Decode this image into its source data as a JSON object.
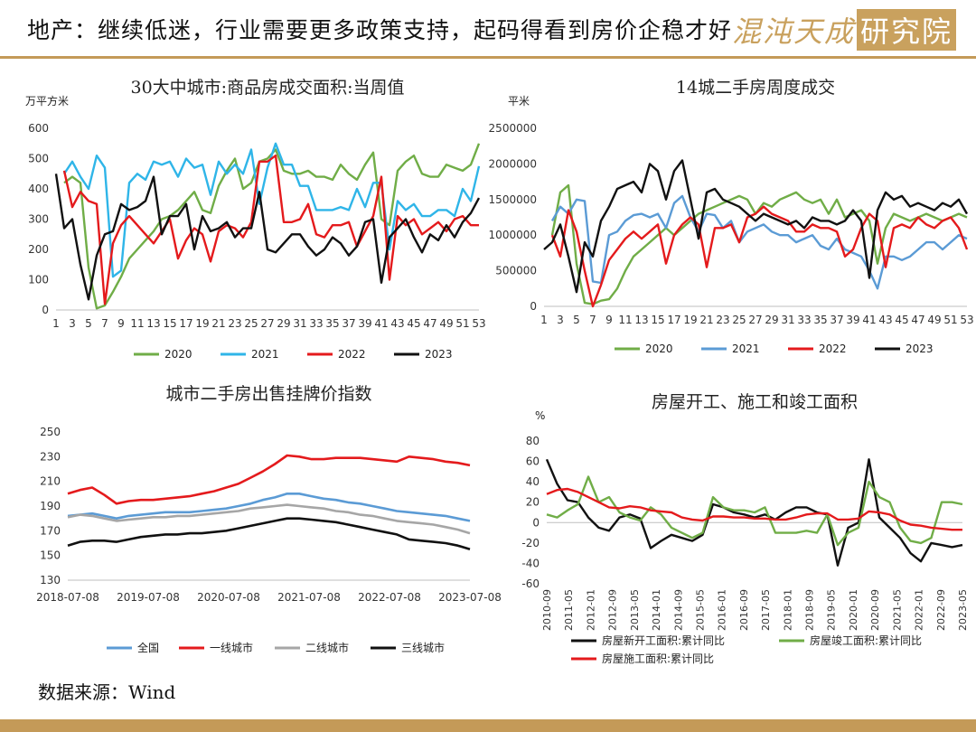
{
  "header": {
    "title": "地产：继续低迷，行业需要更多政策支持，起码得看到房价企稳才好",
    "brand": "混沌天成",
    "brand_box": "研究院"
  },
  "source": "数据来源：Wind",
  "colors": {
    "green": "#70ad47",
    "blue": "#2fb5e8",
    "red": "#e41a1c",
    "black": "#111111",
    "steel": "#5b9bd5",
    "gray": "#a6a6a6",
    "gold": "#c49a58"
  },
  "chart_data": [
    {
      "id": "c1",
      "type": "line",
      "title": "30大中城市:商品房成交面积:当周值",
      "unit": "万平方米",
      "xticks": [
        "1",
        "3",
        "5",
        "7",
        "9",
        "11",
        "13",
        "15",
        "17",
        "19",
        "21",
        "23",
        "25",
        "27",
        "29",
        "31",
        "33",
        "35",
        "37",
        "39",
        "41",
        "43",
        "45",
        "47",
        "49",
        "51",
        "53"
      ],
      "xlim": [
        1,
        53
      ],
      "ylim": [
        0,
        600
      ],
      "yticks": [
        0,
        100,
        200,
        300,
        400,
        500,
        600
      ],
      "grid": false,
      "legend": "bottom",
      "x": [
        1,
        2,
        3,
        4,
        5,
        6,
        7,
        8,
        9,
        10,
        11,
        12,
        13,
        14,
        15,
        16,
        17,
        18,
        19,
        20,
        21,
        22,
        23,
        24,
        25,
        26,
        27,
        28,
        29,
        30,
        31,
        32,
        33,
        34,
        35,
        36,
        37,
        38,
        39,
        40,
        41,
        42,
        43,
        44,
        45,
        46,
        47,
        48,
        49,
        50,
        51,
        52,
        53
      ],
      "series": [
        {
          "name": "2020",
          "color": "#70ad47",
          "values": [
            null,
            420,
            440,
            420,
            140,
            5,
            15,
            60,
            110,
            170,
            200,
            230,
            260,
            300,
            310,
            330,
            360,
            390,
            330,
            320,
            410,
            460,
            500,
            400,
            420,
            490,
            500,
            530,
            460,
            450,
            450,
            460,
            440,
            440,
            430,
            480,
            450,
            430,
            480,
            520,
            300,
            280,
            460,
            490,
            510,
            450,
            440,
            440,
            480,
            470,
            460,
            480,
            550
          ]
        },
        {
          "name": "2021",
          "color": "#2fb5e8",
          "values": [
            null,
            450,
            490,
            440,
            400,
            510,
            470,
            110,
            130,
            420,
            450,
            430,
            490,
            480,
            490,
            440,
            500,
            470,
            480,
            380,
            490,
            450,
            480,
            450,
            530,
            350,
            470,
            550,
            480,
            480,
            410,
            410,
            330,
            330,
            330,
            340,
            330,
            400,
            340,
            420,
            420,
            200,
            360,
            330,
            350,
            310,
            310,
            330,
            330,
            310,
            400,
            360,
            475
          ]
        },
        {
          "name": "2022",
          "color": "#e41a1c",
          "values": [
            null,
            460,
            340,
            390,
            360,
            350,
            20,
            220,
            280,
            310,
            280,
            250,
            220,
            260,
            300,
            170,
            230,
            270,
            250,
            160,
            260,
            280,
            270,
            240,
            290,
            490,
            490,
            510,
            290,
            290,
            300,
            350,
            250,
            240,
            280,
            280,
            290,
            210,
            260,
            310,
            440,
            100,
            310,
            280,
            300,
            250,
            270,
            290,
            260,
            300,
            310,
            280,
            280
          ]
        },
        {
          "name": "2023",
          "color": "#111111",
          "values": [
            450,
            270,
            300,
            150,
            35,
            180,
            250,
            260,
            350,
            330,
            340,
            360,
            440,
            250,
            310,
            310,
            350,
            200,
            310,
            260,
            270,
            290,
            240,
            270,
            270,
            390,
            200,
            190,
            220,
            250,
            250,
            210,
            180,
            200,
            240,
            220,
            180,
            210,
            290,
            300,
            90,
            240,
            270,
            300,
            240,
            190,
            250,
            230,
            280,
            240,
            290,
            320,
            370
          ]
        }
      ]
    },
    {
      "id": "c2",
      "type": "line",
      "title": "14城二手房周度成交",
      "unit": "平米",
      "xticks": [
        "1",
        "3",
        "5",
        "7",
        "9",
        "11",
        "13",
        "15",
        "17",
        "19",
        "21",
        "23",
        "25",
        "27",
        "29",
        "31",
        "33",
        "35",
        "37",
        "39",
        "41",
        "43",
        "45",
        "47",
        "49",
        "51",
        "53"
      ],
      "xlim": [
        1,
        53
      ],
      "ylim": [
        0,
        2500000
      ],
      "yticks": [
        0,
        500000,
        1000000,
        1500000,
        2000000,
        2500000
      ],
      "grid": false,
      "legend": "bottom",
      "x": [
        1,
        2,
        3,
        4,
        5,
        6,
        7,
        8,
        9,
        10,
        11,
        12,
        13,
        14,
        15,
        16,
        17,
        18,
        19,
        20,
        21,
        22,
        23,
        24,
        25,
        26,
        27,
        28,
        29,
        30,
        31,
        32,
        33,
        34,
        35,
        36,
        37,
        38,
        39,
        40,
        41,
        42,
        43,
        44,
        45,
        46,
        47,
        48,
        49,
        50,
        51,
        52,
        53
      ],
      "series": [
        {
          "name": "2020",
          "color": "#70ad47",
          "values": [
            null,
            1000000,
            1600000,
            1700000,
            600000,
            50000,
            30000,
            80000,
            100000,
            250000,
            500000,
            700000,
            800000,
            900000,
            1000000,
            1100000,
            1000000,
            1100000,
            1200000,
            1300000,
            1350000,
            1400000,
            1450000,
            1500000,
            1550000,
            1500000,
            1300000,
            1450000,
            1400000,
            1500000,
            1550000,
            1600000,
            1500000,
            1450000,
            1500000,
            1300000,
            1500000,
            1250000,
            1300000,
            1350000,
            1200000,
            600000,
            1100000,
            1300000,
            1250000,
            1200000,
            1250000,
            1300000,
            1250000,
            1200000,
            1250000,
            1300000,
            1250000
          ]
        },
        {
          "name": "2021",
          "color": "#5b9bd5",
          "values": [
            null,
            1200000,
            1400000,
            1300000,
            1500000,
            1480000,
            350000,
            330000,
            1000000,
            1050000,
            1200000,
            1280000,
            1300000,
            1250000,
            1300000,
            1100000,
            1450000,
            1550000,
            1250000,
            1050000,
            1300000,
            1280000,
            1100000,
            1200000,
            900000,
            1050000,
            1100000,
            1150000,
            1050000,
            1000000,
            1000000,
            900000,
            950000,
            1000000,
            850000,
            800000,
            950000,
            800000,
            750000,
            700000,
            500000,
            250000,
            700000,
            700000,
            650000,
            700000,
            800000,
            900000,
            900000,
            800000,
            900000,
            1000000,
            950000
          ]
        },
        {
          "name": "2022",
          "color": "#e41a1c",
          "values": [
            null,
            1000000,
            700000,
            1350000,
            1050000,
            500000,
            0,
            300000,
            650000,
            800000,
            950000,
            1050000,
            950000,
            1050000,
            1150000,
            600000,
            1000000,
            1150000,
            1250000,
            1150000,
            550000,
            1100000,
            1100000,
            1150000,
            900000,
            1250000,
            1300000,
            1400000,
            1300000,
            1250000,
            1200000,
            1050000,
            1050000,
            1150000,
            1100000,
            1100000,
            1050000,
            700000,
            800000,
            1100000,
            1300000,
            1200000,
            550000,
            1100000,
            1150000,
            1100000,
            1250000,
            1150000,
            1100000,
            1200000,
            1250000,
            1100000,
            800000
          ]
        },
        {
          "name": "2023",
          "color": "#111111",
          "values": [
            800000,
            900000,
            1150000,
            700000,
            200000,
            900000,
            700000,
            1200000,
            1400000,
            1650000,
            1700000,
            1750000,
            1600000,
            2000000,
            1900000,
            1500000,
            1900000,
            2050000,
            1500000,
            950000,
            1600000,
            1650000,
            1500000,
            1450000,
            1400000,
            1300000,
            1200000,
            1300000,
            1250000,
            1200000,
            1150000,
            1200000,
            1100000,
            1250000,
            1200000,
            1200000,
            1150000,
            1200000,
            1350000,
            1200000,
            400000,
            1350000,
            1600000,
            1500000,
            1550000,
            1400000,
            1450000,
            1400000,
            1350000,
            1450000,
            1400000,
            1500000,
            1300000
          ]
        }
      ]
    },
    {
      "id": "c3",
      "type": "line",
      "title": "城市二手房出售挂牌价指数",
      "xticks": [
        "2018-07-08",
        "2019-07-08",
        "2020-07-08",
        "2021-07-08",
        "2022-07-08",
        "2023-07-08"
      ],
      "ylim": [
        130,
        250
      ],
      "yticks": [
        130,
        150,
        170,
        190,
        210,
        230,
        250
      ],
      "grid": false,
      "legend": "bottom",
      "x": [
        "2018-07",
        "2018-09",
        "2018-11",
        "2019-01",
        "2019-03",
        "2019-05",
        "2019-07",
        "2019-09",
        "2019-11",
        "2020-01",
        "2020-03",
        "2020-05",
        "2020-07",
        "2020-09",
        "2020-11",
        "2021-01",
        "2021-03",
        "2021-05",
        "2021-07",
        "2021-09",
        "2021-11",
        "2022-01",
        "2022-03",
        "2022-05",
        "2022-07",
        "2022-09",
        "2022-11",
        "2023-01",
        "2023-03",
        "2023-05",
        "2023-07",
        "2023-09",
        "2023-11",
        "2023-12"
      ],
      "series": [
        {
          "name": "全国",
          "color": "#5b9bd5",
          "values": [
            182,
            183,
            184,
            182,
            180,
            182,
            183,
            184,
            185,
            185,
            185,
            186,
            187,
            188,
            190,
            192,
            195,
            197,
            200,
            200,
            198,
            196,
            195,
            193,
            192,
            190,
            188,
            186,
            185,
            184,
            183,
            182,
            180,
            178
          ]
        },
        {
          "name": "一线城市",
          "color": "#e41a1c",
          "values": [
            200,
            203,
            205,
            199,
            192,
            194,
            195,
            195,
            196,
            197,
            198,
            200,
            202,
            205,
            208,
            213,
            218,
            224,
            231,
            230,
            228,
            228,
            229,
            229,
            229,
            228,
            227,
            226,
            230,
            229,
            228,
            226,
            225,
            223
          ]
        },
        {
          "name": "二线城市",
          "color": "#a6a6a6",
          "values": [
            181,
            183,
            182,
            180,
            178,
            179,
            180,
            181,
            181,
            182,
            182,
            183,
            184,
            185,
            186,
            188,
            189,
            190,
            191,
            190,
            189,
            188,
            186,
            185,
            183,
            182,
            180,
            178,
            177,
            176,
            175,
            173,
            171,
            168
          ]
        },
        {
          "name": "三线城市",
          "color": "#111111",
          "values": [
            158,
            161,
            162,
            162,
            161,
            163,
            165,
            166,
            167,
            167,
            168,
            168,
            169,
            170,
            172,
            174,
            176,
            178,
            180,
            180,
            179,
            178,
            177,
            175,
            173,
            171,
            169,
            167,
            163,
            162,
            161,
            160,
            158,
            155
          ]
        }
      ]
    },
    {
      "id": "c4",
      "type": "line",
      "title": "房屋开工、施工和竣工面积",
      "unit": "%",
      "xticks": [
        "2010-09",
        "2011-05",
        "2012-01",
        "2012-09",
        "2013-05",
        "2014-01",
        "2014-09",
        "2015-05",
        "2016-01",
        "2016-09",
        "2017-05",
        "2018-01",
        "2018-09",
        "2019-05",
        "2020-01",
        "2020-09",
        "2021-05",
        "2022-01",
        "2022-09",
        "2023-05"
      ],
      "ylim": [
        -60,
        80
      ],
      "yticks": [
        -60,
        -40,
        -20,
        0,
        20,
        40,
        60,
        80
      ],
      "grid": false,
      "legend": "bottom",
      "x": [
        "2010-09",
        "2011-01",
        "2011-05",
        "2011-09",
        "2012-01",
        "2012-05",
        "2012-09",
        "2013-01",
        "2013-05",
        "2013-09",
        "2014-01",
        "2014-05",
        "2014-09",
        "2015-01",
        "2015-05",
        "2015-09",
        "2016-01",
        "2016-05",
        "2016-09",
        "2017-01",
        "2017-05",
        "2017-09",
        "2018-01",
        "2018-05",
        "2018-09",
        "2019-01",
        "2019-05",
        "2019-09",
        "2020-01",
        "2020-05",
        "2020-09",
        "2021-01",
        "2021-05",
        "2021-09",
        "2022-01",
        "2022-05",
        "2022-09",
        "2023-01",
        "2023-05",
        "2023-09",
        "2023-11"
      ],
      "series": [
        {
          "name": "房屋新开工面积:累计同比",
          "color": "#111111",
          "values": [
            62,
            38,
            22,
            20,
            5,
            -5,
            -8,
            5,
            8,
            4,
            -25,
            -18,
            -12,
            -15,
            -18,
            -12,
            18,
            15,
            10,
            8,
            5,
            8,
            3,
            10,
            15,
            15,
            10,
            8,
            -42,
            -5,
            0,
            62,
            5,
            -5,
            -15,
            -30,
            -38,
            -20,
            -22,
            -24,
            -22
          ]
        },
        {
          "name": "房屋竣工面积:累计同比",
          "color": "#70ad47",
          "values": [
            8,
            5,
            12,
            18,
            45,
            20,
            25,
            10,
            5,
            2,
            15,
            8,
            -5,
            -10,
            -15,
            -10,
            25,
            15,
            12,
            12,
            10,
            15,
            -10,
            -10,
            -10,
            -8,
            -10,
            8,
            -22,
            -10,
            -5,
            40,
            25,
            20,
            -5,
            -18,
            -20,
            -15,
            20,
            20,
            18
          ]
        },
        {
          "name": "房屋施工面积:累计同比",
          "color": "#e41a1c",
          "values": [
            28,
            32,
            33,
            30,
            25,
            20,
            15,
            14,
            16,
            15,
            12,
            11,
            10,
            5,
            3,
            2,
            6,
            6,
            5,
            5,
            4,
            4,
            3,
            3,
            5,
            8,
            9,
            9,
            3,
            3,
            4,
            11,
            10,
            8,
            2,
            -2,
            -3,
            -5,
            -6,
            -7,
            -7
          ]
        }
      ]
    }
  ]
}
